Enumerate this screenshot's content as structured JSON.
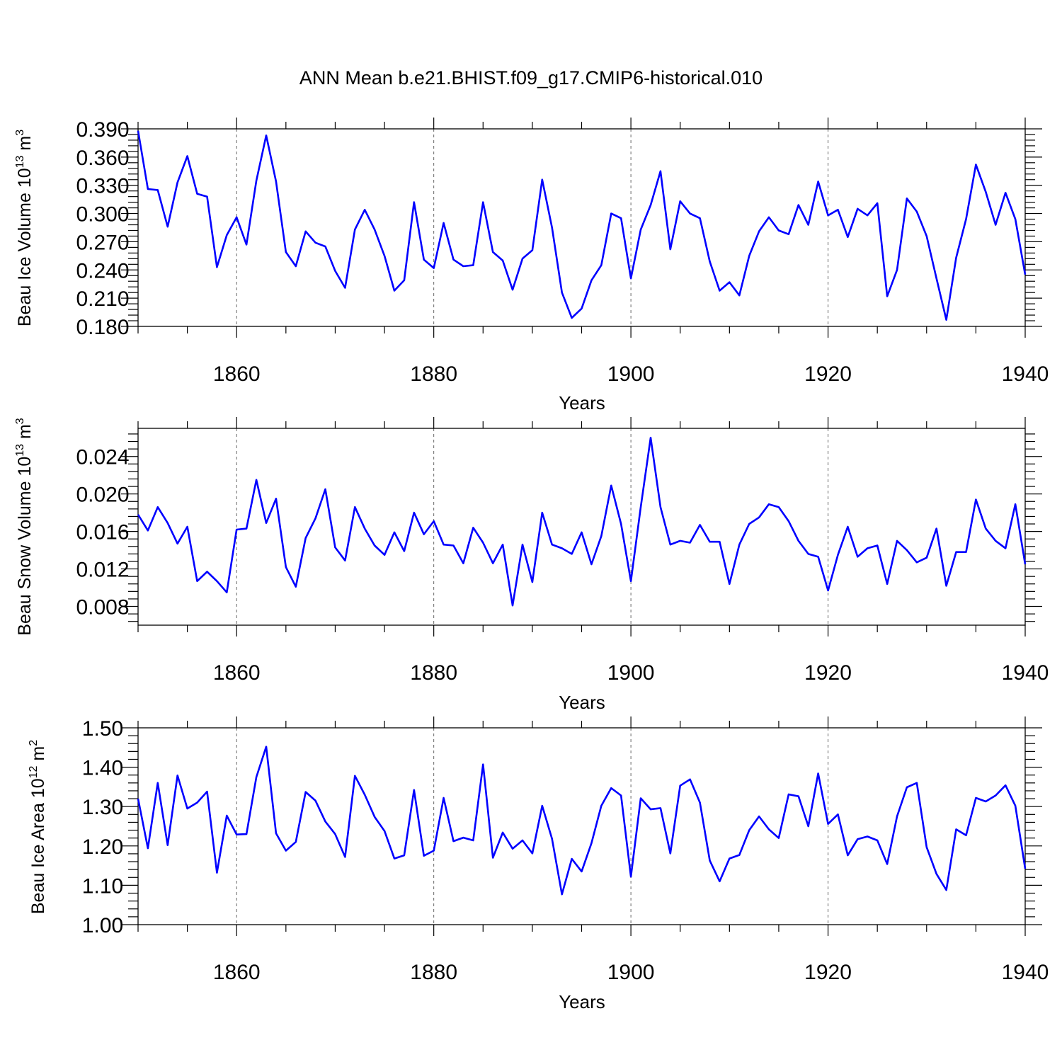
{
  "title": "ANN Mean b.e21.BHIST.f09_g17.CMIP6-historical.010",
  "colors": {
    "line": "#0000ff",
    "axis": "#000000",
    "grid": "#666666"
  },
  "chart_data": [
    {
      "type": "line",
      "xlabel": "Years",
      "ylabel": {
        "text": "Beau Ice Volume 10",
        "sup": "13",
        "unit": " m",
        "unit_sup": "3"
      },
      "xlim": [
        1850,
        1940
      ],
      "ylim": [
        0.18,
        0.39
      ],
      "xticks": [
        "1860",
        "1880",
        "1900",
        "1920",
        "1940"
      ],
      "yticks": [
        "0.180",
        "0.210",
        "0.240",
        "0.270",
        "0.300",
        "0.330",
        "0.360",
        "0.390"
      ],
      "grid": "vertical dashed at major x ticks",
      "x": [
        1850,
        1851,
        1852,
        1853,
        1854,
        1855,
        1856,
        1857,
        1858,
        1859,
        1860,
        1861,
        1862,
        1863,
        1864,
        1865,
        1866,
        1867,
        1868,
        1869,
        1870,
        1871,
        1872,
        1873,
        1874,
        1875,
        1876,
        1877,
        1878,
        1879,
        1880,
        1881,
        1882,
        1883,
        1884,
        1885,
        1886,
        1887,
        1888,
        1889,
        1890,
        1891,
        1892,
        1893,
        1894,
        1895,
        1896,
        1897,
        1898,
        1899,
        1900,
        1901,
        1902,
        1903,
        1904,
        1905,
        1906,
        1907,
        1908,
        1909,
        1910,
        1911,
        1912,
        1913,
        1914,
        1915,
        1916,
        1917,
        1918,
        1919,
        1920,
        1921,
        1922,
        1923,
        1924,
        1925,
        1926,
        1927,
        1928,
        1929,
        1930,
        1931,
        1932,
        1933,
        1934,
        1935,
        1936,
        1937,
        1938,
        1939,
        1940
      ],
      "values": [
        0.388,
        0.326,
        0.325,
        0.286,
        0.333,
        0.361,
        0.321,
        0.318,
        0.243,
        0.277,
        0.296,
        0.267,
        0.335,
        0.383,
        0.334,
        0.259,
        0.244,
        0.281,
        0.269,
        0.265,
        0.239,
        0.221,
        0.283,
        0.304,
        0.283,
        0.255,
        0.218,
        0.229,
        0.312,
        0.251,
        0.242,
        0.29,
        0.251,
        0.244,
        0.245,
        0.312,
        0.259,
        0.25,
        0.219,
        0.252,
        0.261,
        0.336,
        0.285,
        0.216,
        0.189,
        0.199,
        0.229,
        0.245,
        0.3,
        0.295,
        0.231,
        0.283,
        0.309,
        0.345,
        0.262,
        0.313,
        0.3,
        0.295,
        0.249,
        0.218,
        0.227,
        0.213,
        0.255,
        0.281,
        0.296,
        0.282,
        0.278,
        0.309,
        0.288,
        0.334,
        0.298,
        0.304,
        0.275,
        0.305,
        0.298,
        0.311,
        0.212,
        0.24,
        0.316,
        0.302,
        0.276,
        0.231,
        0.187,
        0.253,
        0.294,
        0.352,
        0.323,
        0.288,
        0.322,
        0.294,
        0.235
      ]
    },
    {
      "type": "line",
      "xlabel": "Years",
      "ylabel": {
        "text": "Beau Snow Volume 10",
        "sup": "13",
        "unit": " m",
        "unit_sup": "3"
      },
      "xlim": [
        1850,
        1940
      ],
      "ylim": [
        0.006,
        0.027
      ],
      "xticks": [
        "1860",
        "1880",
        "1900",
        "1920",
        "1940"
      ],
      "yticks": [
        "0.008",
        "0.012",
        "0.016",
        "0.020",
        "0.024"
      ],
      "grid": "vertical dashed at major x ticks",
      "x": [
        1850,
        1851,
        1852,
        1853,
        1854,
        1855,
        1856,
        1857,
        1858,
        1859,
        1860,
        1861,
        1862,
        1863,
        1864,
        1865,
        1866,
        1867,
        1868,
        1869,
        1870,
        1871,
        1872,
        1873,
        1874,
        1875,
        1876,
        1877,
        1878,
        1879,
        1880,
        1881,
        1882,
        1883,
        1884,
        1885,
        1886,
        1887,
        1888,
        1889,
        1890,
        1891,
        1892,
        1893,
        1894,
        1895,
        1896,
        1897,
        1898,
        1899,
        1900,
        1901,
        1902,
        1903,
        1904,
        1905,
        1906,
        1907,
        1908,
        1909,
        1910,
        1911,
        1912,
        1913,
        1914,
        1915,
        1916,
        1917,
        1918,
        1919,
        1920,
        1921,
        1922,
        1923,
        1924,
        1925,
        1926,
        1927,
        1928,
        1929,
        1930,
        1931,
        1932,
        1933,
        1934,
        1935,
        1936,
        1937,
        1938,
        1939,
        1940
      ],
      "values": [
        0.0178,
        0.0161,
        0.0186,
        0.0169,
        0.0147,
        0.0165,
        0.0107,
        0.0117,
        0.0107,
        0.0095,
        0.0162,
        0.0163,
        0.0215,
        0.0169,
        0.0195,
        0.0122,
        0.0101,
        0.0153,
        0.0174,
        0.0205,
        0.0143,
        0.0129,
        0.0186,
        0.0163,
        0.0145,
        0.0135,
        0.0159,
        0.0139,
        0.018,
        0.0157,
        0.0171,
        0.0146,
        0.0145,
        0.0126,
        0.0164,
        0.0148,
        0.0126,
        0.0146,
        0.0081,
        0.0146,
        0.0106,
        0.018,
        0.0146,
        0.0142,
        0.0136,
        0.0159,
        0.0125,
        0.0155,
        0.0209,
        0.0168,
        0.0107,
        0.0186,
        0.026,
        0.0186,
        0.0146,
        0.015,
        0.0148,
        0.0167,
        0.0149,
        0.0149,
        0.0104,
        0.0146,
        0.0168,
        0.0175,
        0.0189,
        0.0186,
        0.0171,
        0.015,
        0.0136,
        0.0133,
        0.0097,
        0.0135,
        0.0165,
        0.0133,
        0.0142,
        0.0145,
        0.0104,
        0.015,
        0.014,
        0.0127,
        0.0132,
        0.0163,
        0.0102,
        0.0138,
        0.0138,
        0.0194,
        0.0163,
        0.015,
        0.0142,
        0.0189,
        0.0125
      ]
    },
    {
      "type": "line",
      "xlabel": "Years",
      "ylabel": {
        "text": "Beau Ice Area 10",
        "sup": "12",
        "unit": " m",
        "unit_sup": "2"
      },
      "xlim": [
        1850,
        1940
      ],
      "ylim": [
        1.0,
        1.5
      ],
      "xticks": [
        "1860",
        "1880",
        "1900",
        "1920",
        "1940"
      ],
      "yticks": [
        "1.00",
        "1.10",
        "1.20",
        "1.30",
        "1.40",
        "1.50"
      ],
      "grid": "vertical dashed at major x ticks",
      "x": [
        1850,
        1851,
        1852,
        1853,
        1854,
        1855,
        1856,
        1857,
        1858,
        1859,
        1860,
        1861,
        1862,
        1863,
        1864,
        1865,
        1866,
        1867,
        1868,
        1869,
        1870,
        1871,
        1872,
        1873,
        1874,
        1875,
        1876,
        1877,
        1878,
        1879,
        1880,
        1881,
        1882,
        1883,
        1884,
        1885,
        1886,
        1887,
        1888,
        1889,
        1890,
        1891,
        1892,
        1893,
        1894,
        1895,
        1896,
        1897,
        1898,
        1899,
        1900,
        1901,
        1902,
        1903,
        1904,
        1905,
        1906,
        1907,
        1908,
        1909,
        1910,
        1911,
        1912,
        1913,
        1914,
        1915,
        1916,
        1917,
        1918,
        1919,
        1920,
        1921,
        1922,
        1923,
        1924,
        1925,
        1926,
        1927,
        1928,
        1929,
        1930,
        1931,
        1932,
        1933,
        1934,
        1935,
        1936,
        1937,
        1938,
        1939,
        1940
      ],
      "values": [
        1.32,
        1.194,
        1.36,
        1.202,
        1.379,
        1.295,
        1.31,
        1.338,
        1.132,
        1.277,
        1.229,
        1.23,
        1.375,
        1.452,
        1.232,
        1.188,
        1.21,
        1.337,
        1.315,
        1.262,
        1.23,
        1.172,
        1.378,
        1.33,
        1.274,
        1.238,
        1.168,
        1.176,
        1.342,
        1.175,
        1.188,
        1.322,
        1.212,
        1.221,
        1.214,
        1.407,
        1.17,
        1.234,
        1.193,
        1.214,
        1.181,
        1.302,
        1.218,
        1.077,
        1.167,
        1.135,
        1.207,
        1.302,
        1.347,
        1.328,
        1.122,
        1.321,
        1.293,
        1.296,
        1.181,
        1.353,
        1.369,
        1.31,
        1.163,
        1.11,
        1.168,
        1.177,
        1.24,
        1.275,
        1.242,
        1.22,
        1.331,
        1.326,
        1.25,
        1.384,
        1.256,
        1.28,
        1.176,
        1.217,
        1.224,
        1.214,
        1.154,
        1.275,
        1.349,
        1.36,
        1.197,
        1.129,
        1.088,
        1.242,
        1.227,
        1.322,
        1.313,
        1.328,
        1.354,
        1.302,
        1.142
      ]
    }
  ]
}
